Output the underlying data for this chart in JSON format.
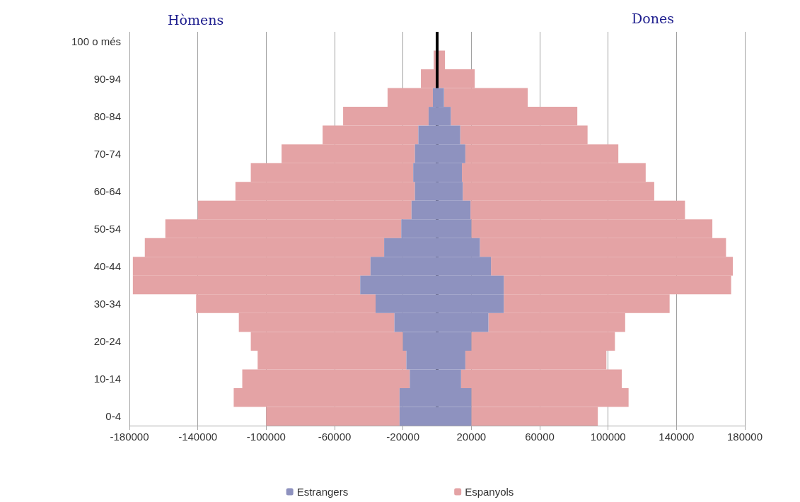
{
  "chart_data": {
    "type": "bar",
    "orientation": "horizontal",
    "categories": [
      "100 o més",
      null,
      "90-94",
      null,
      "80-84",
      null,
      "70-74",
      null,
      "60-64",
      null,
      "50-54",
      null,
      "40-44",
      null,
      "30-34",
      null,
      "20-24",
      null,
      "10-14",
      null,
      "0-4"
    ],
    "series": [
      {
        "color": "#8e92bf",
        "values": [
          null,
          null,
          null,
          -2500,
          -5000,
          -11000,
          -13000,
          -14000,
          -13000,
          -15000,
          -21000,
          -31000,
          -39000,
          -45000,
          -36000,
          -25000,
          -20000,
          -18000,
          -16000,
          -22000,
          -22000
        ]
      },
      {
        "name": "Estrangers",
        "color": "#8e92bf",
        "values": [
          null,
          null,
          null,
          4000,
          8000,
          13500,
          16500,
          14500,
          15000,
          19500,
          20000,
          25000,
          31500,
          39000,
          39000,
          30000,
          20000,
          16500,
          14000,
          20000,
          20000
        ]
      },
      {
        "color": "#e4a3a5",
        "values": [
          null,
          -2000,
          -9500,
          -26500,
          -50000,
          -56000,
          -78000,
          -95000,
          -105000,
          -125000,
          -138000,
          -140000,
          -139000,
          -133000,
          -105000,
          -91000,
          -89000,
          -87000,
          -98000,
          -97000,
          -78000
        ]
      },
      {
        "name": "Espanyols",
        "color": "#e4a3a5",
        "values": [
          null,
          4600,
          22000,
          49000,
          74000,
          74500,
          89500,
          107500,
          112000,
          125500,
          141000,
          144000,
          141500,
          133000,
          97000,
          80000,
          84000,
          82500,
          94000,
          92000,
          74000
        ]
      }
    ],
    "xlim": [
      -180000,
      180000
    ],
    "xticks": [
      -180000,
      -140000,
      -100000,
      -60000,
      -20000,
      20000,
      60000,
      100000,
      140000,
      180000
    ],
    "stacked": true,
    "grid": "x",
    "legend": "bottom",
    "ref_lines": [
      {
        "axis": "x",
        "value": 0,
        "color": "#000000"
      }
    ],
    "annotations": [
      "Hòmens",
      "Dones"
    ]
  }
}
